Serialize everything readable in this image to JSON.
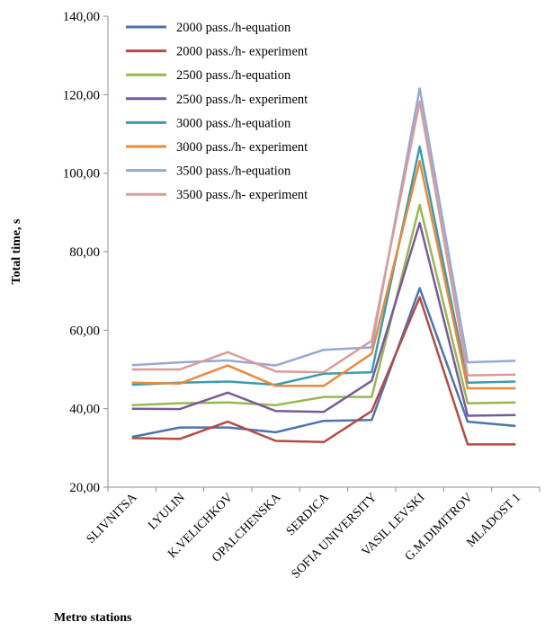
{
  "chart_data": {
    "type": "line",
    "xlabel": "Metro stations",
    "ylabel": "Total time, s",
    "ylim": [
      20,
      140
    ],
    "yticks": [
      "20,00",
      "40,00",
      "60,00",
      "80,00",
      "100,00",
      "120,00",
      "140,00"
    ],
    "grid": false,
    "legend_position": "top-left",
    "categories": [
      "SLIVNITSA",
      "LYULIN",
      "K.VELICHKOV",
      "OPALCHENSKA",
      "SERDICA",
      "SOFIA UNIVERSITY",
      "VASIL LEVSKI",
      "G.M.DIMITROV",
      "MLADOST 1"
    ],
    "series": [
      {
        "name": "2000 pass./h-equation",
        "color": "#4a76ad",
        "values": [
          32.8,
          35.2,
          35.2,
          34.0,
          36.9,
          37.1,
          70.7,
          36.7,
          35.6
        ]
      },
      {
        "name": "2000 pass./h- experiment",
        "color": "#b84a44",
        "values": [
          32.5,
          32.3,
          36.7,
          31.8,
          31.5,
          39.4,
          68.4,
          30.9,
          30.9
        ]
      },
      {
        "name": "2500 pass./h-equation",
        "color": "#97b852",
        "values": [
          40.9,
          41.4,
          41.6,
          40.9,
          43.0,
          43.0,
          91.9,
          41.4,
          41.6
        ]
      },
      {
        "name": "2500 pass./h- experiment",
        "color": "#7a5a9a",
        "values": [
          40.0,
          39.9,
          44.1,
          39.4,
          39.2,
          47.1,
          87.3,
          38.2,
          38.4
        ]
      },
      {
        "name": "3000 pass./h-equation",
        "color": "#3a9cb0",
        "values": [
          46.1,
          46.6,
          46.9,
          46.1,
          48.9,
          49.3,
          106.8,
          46.6,
          46.9
        ]
      },
      {
        "name": "3000 pass./h- experiment",
        "color": "#ea8a3a",
        "values": [
          46.6,
          46.4,
          51.0,
          45.8,
          45.8,
          54.0,
          103.1,
          45.2,
          45.2
        ]
      },
      {
        "name": "3500 pass./h-equation",
        "color": "#93aad6",
        "values": [
          51.1,
          51.8,
          52.3,
          51.0,
          55.0,
          55.6,
          121.6,
          51.8,
          52.2
        ]
      },
      {
        "name": "3500 pass./h- experiment",
        "color": "#db9b98",
        "values": [
          50.0,
          50.0,
          54.4,
          49.5,
          49.3,
          57.3,
          118.3,
          48.5,
          48.7
        ]
      }
    ]
  }
}
